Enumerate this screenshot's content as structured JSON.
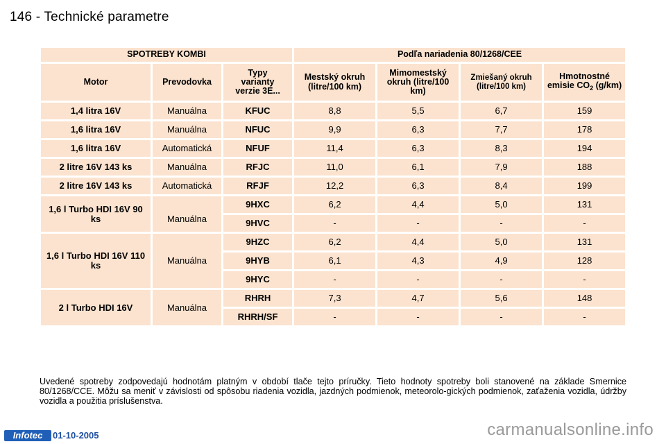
{
  "page": {
    "title": "146 - Technické parametre"
  },
  "table": {
    "group_left": "SPOTREBY KOMBI",
    "group_right": "Podľa nariadenia 80/1268/CEE",
    "col_motor": "Motor",
    "col_gearbox": "Prevodovka",
    "col_variant": "Typy varianty verzie 3E...",
    "col_urban": "Mestský okruh (litre/100 km)",
    "col_extra": "Mimomestský okruh (litre/100 km)",
    "col_combined": "Zmiešaný okruh (litre/100 km)",
    "col_co2_main": "Hmotnostné emisie CO",
    "col_co2_sub": "2",
    "col_co2_unit": "(g/km)",
    "groups": [
      {
        "motor": "1,4 litra 16V",
        "gearbox": "Manuálna",
        "rows": [
          {
            "code": "KFUC",
            "urban": "8,8",
            "extra": "5,5",
            "combined": "6,7",
            "co2": "159"
          }
        ]
      },
      {
        "motor": "1,6 litra 16V",
        "gearbox": "Manuálna",
        "rows": [
          {
            "code": "NFUC",
            "urban": "9,9",
            "extra": "6,3",
            "combined": "7,7",
            "co2": "178"
          }
        ]
      },
      {
        "motor": "1,6 litra 16V",
        "gearbox": "Automatická",
        "rows": [
          {
            "code": "NFUF",
            "urban": "11,4",
            "extra": "6,3",
            "combined": "8,3",
            "co2": "194"
          }
        ]
      },
      {
        "motor": "2 litre 16V 143 ks",
        "gearbox": "Manuálna",
        "rows": [
          {
            "code": "RFJC",
            "urban": "11,0",
            "extra": "6,1",
            "combined": "7,9",
            "co2": "188"
          }
        ]
      },
      {
        "motor": "2 litre 16V 143 ks",
        "gearbox": "Automatická",
        "rows": [
          {
            "code": "RFJF",
            "urban": "12,2",
            "extra": "6,3",
            "combined": "8,4",
            "co2": "199"
          }
        ]
      },
      {
        "motor": "1,6 l Turbo HDI 16V 90 ks",
        "gearbox": "Manuálna",
        "rows": [
          {
            "code": "9HXC",
            "urban": "6,2",
            "extra": "4,4",
            "combined": "5,0",
            "co2": "131"
          },
          {
            "code": "9HVC",
            "urban": "-",
            "extra": "-",
            "combined": "-",
            "co2": "-"
          }
        ]
      },
      {
        "motor": "1,6 l Turbo HDI 16V 110 ks",
        "gearbox": "Manuálna",
        "rows": [
          {
            "code": "9HZC",
            "urban": "6,2",
            "extra": "4,4",
            "combined": "5,0",
            "co2": "131"
          },
          {
            "code": "9HYB",
            "urban": "6,1",
            "extra": "4,3",
            "combined": "4,9",
            "co2": "128"
          },
          {
            "code": "9HYC",
            "urban": "-",
            "extra": "-",
            "combined": "-",
            "co2": "-"
          }
        ]
      },
      {
        "motor": "2 l Turbo HDI 16V",
        "gearbox": "Manuálna",
        "rows": [
          {
            "code": "RHRH",
            "urban": "7,3",
            "extra": "4,7",
            "combined": "5,6",
            "co2": "148"
          },
          {
            "code": "RHRH/SF",
            "urban": "-",
            "extra": "-",
            "combined": "-",
            "co2": "-"
          }
        ]
      }
    ]
  },
  "footnote": "Uvedené spotreby zodpovedajú hodnotám platným v období tlače tejto príručky. Tieto hodnoty spotreby boli stanovené na základe Smernice 80/1268/CCE. Môžu sa meniť v závislosti od spôsobu riadenia vozidla, jazdných podmienok, meteorolo-gických podmienok, zaťaženia vozidla, údržby vozidla a použitia príslušenstva.",
  "footer": {
    "logo": "Infotec",
    "date": "01-10-2005",
    "watermark": "carmanualsonline.info"
  },
  "colors": {
    "cell_bg": "#fbe3cf",
    "logo_bg": "#1f5fb8"
  }
}
